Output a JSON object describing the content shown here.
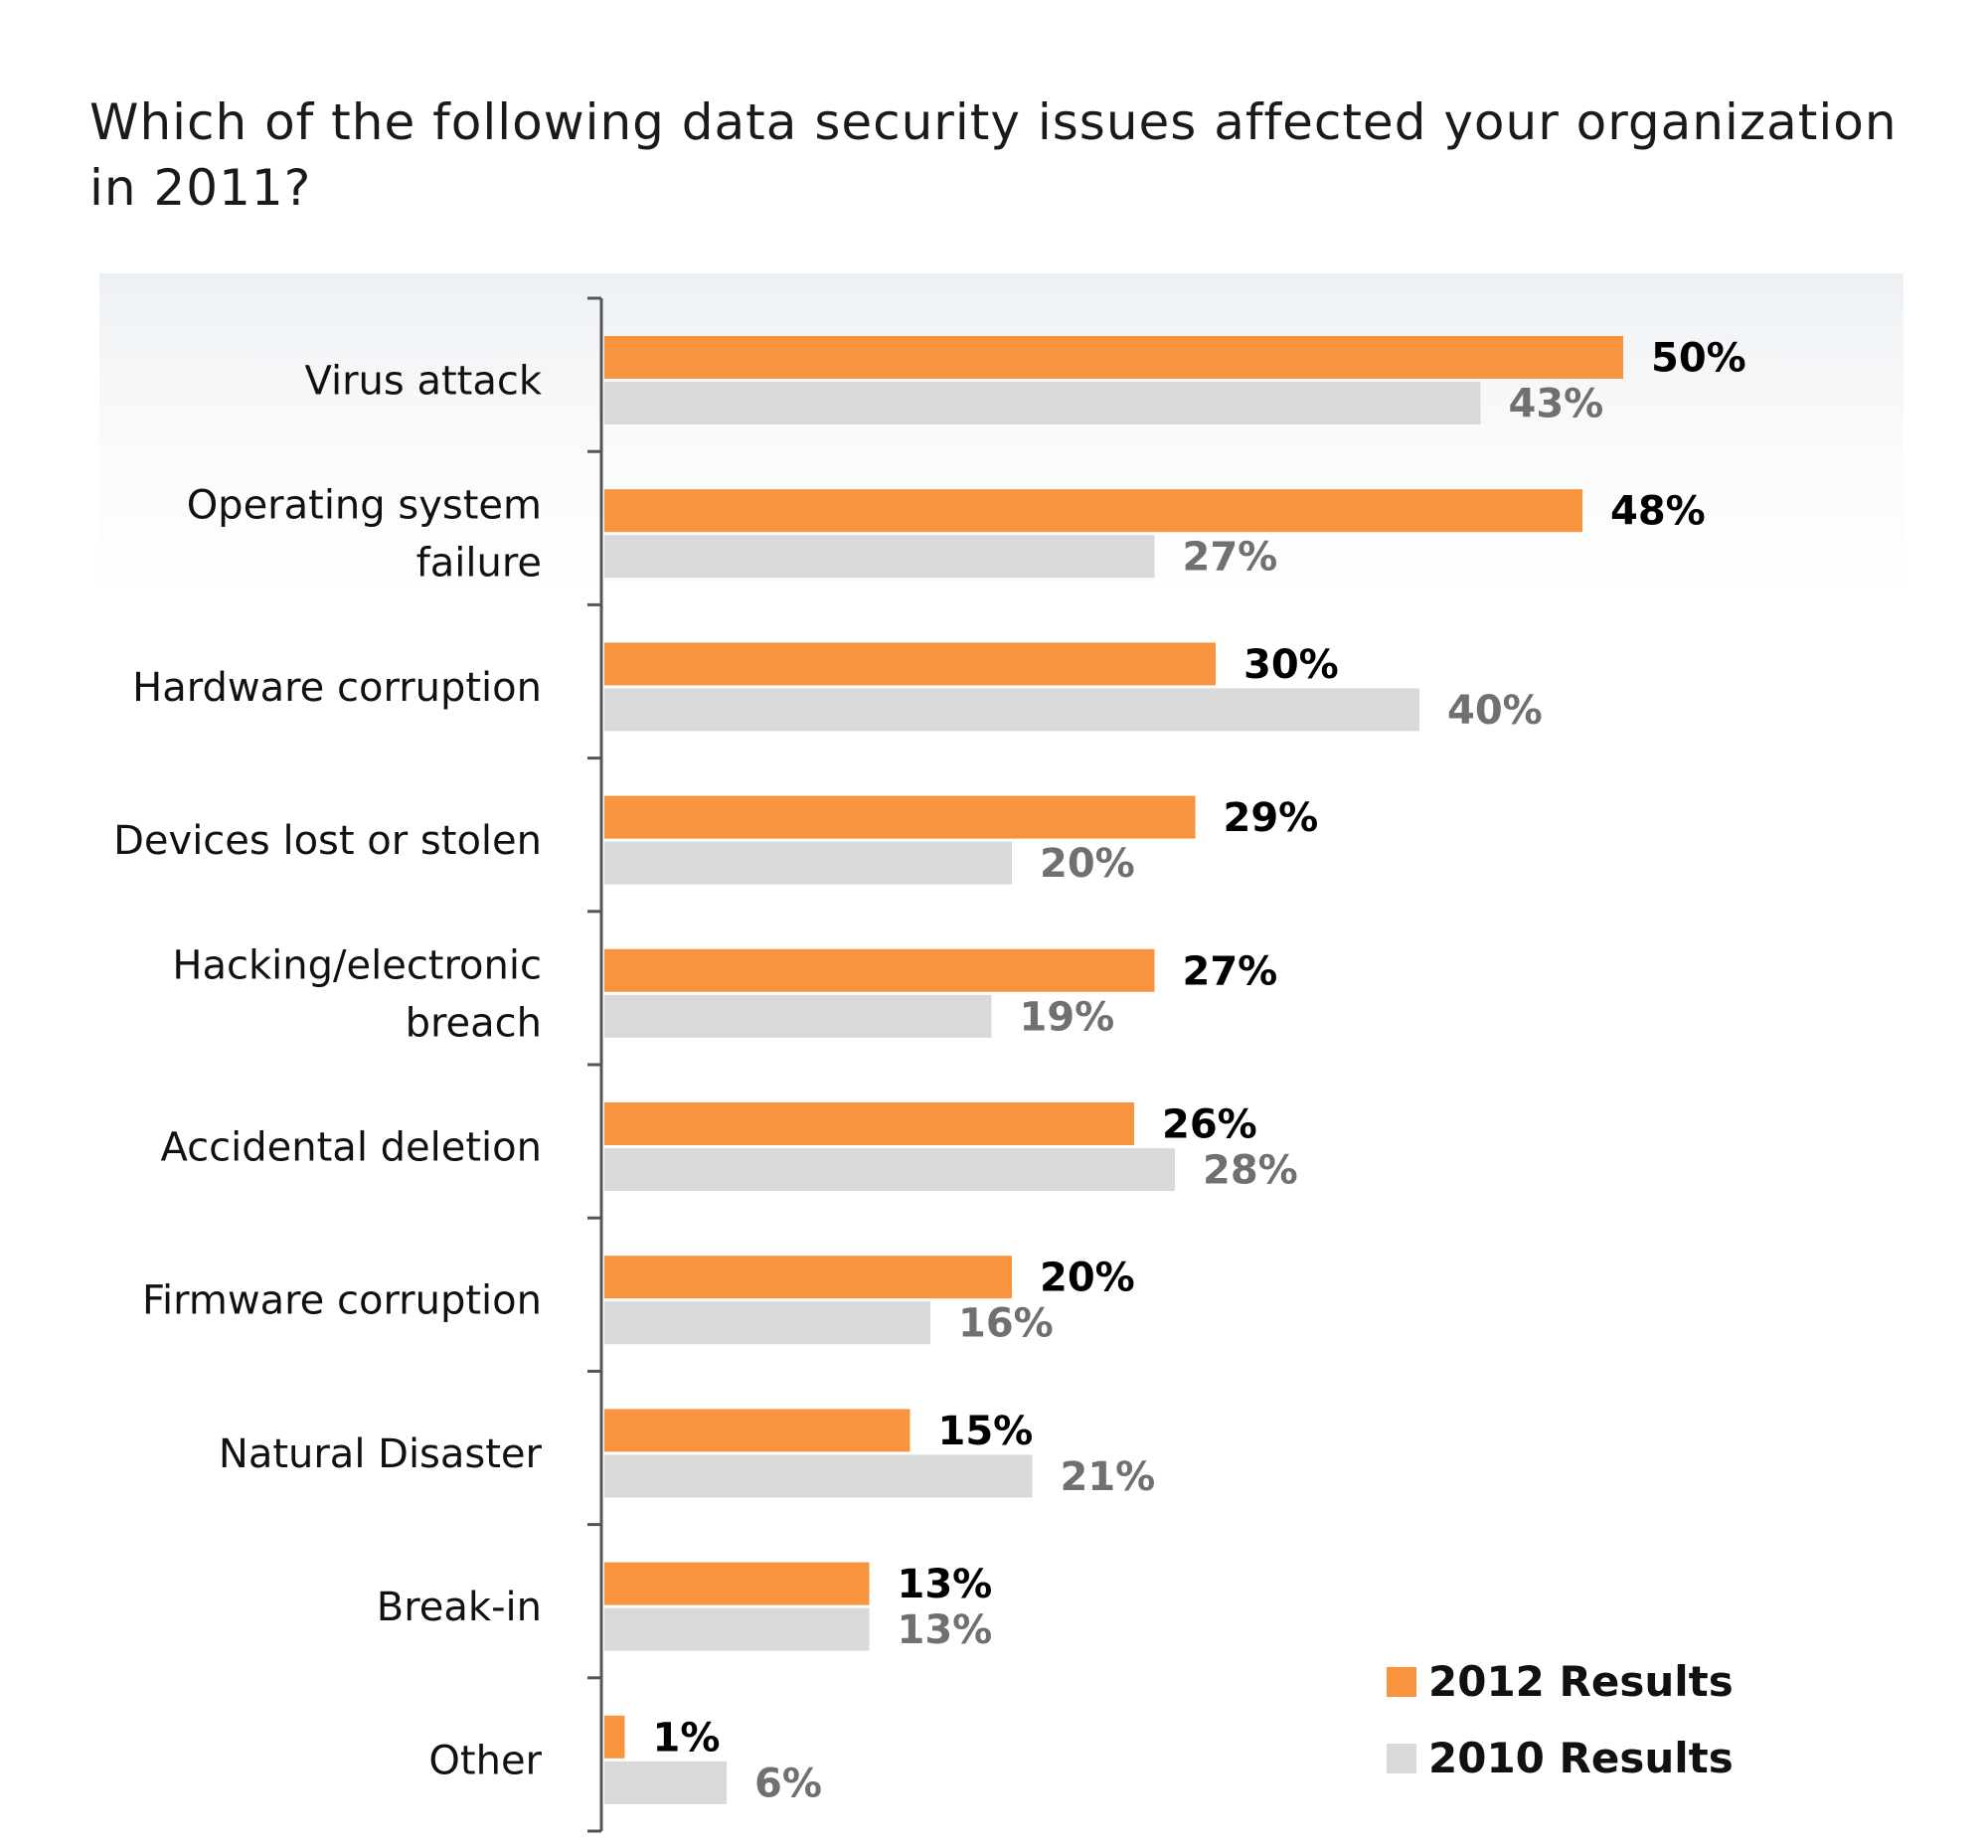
{
  "chart_data": {
    "type": "bar",
    "orientation": "horizontal",
    "title": "Which of the following data security issues affected your organization in 2011?",
    "categories": [
      [
        "Virus attack"
      ],
      [
        "Operating system",
        "failure"
      ],
      [
        "Hardware corruption"
      ],
      [
        "Devices lost or stolen"
      ],
      [
        "Hacking/electronic",
        "breach"
      ],
      [
        "Accidental deletion"
      ],
      [
        "Firmware corruption"
      ],
      [
        "Natural Disaster"
      ],
      [
        "Break-in"
      ],
      [
        "Other"
      ]
    ],
    "series": [
      {
        "name": "2012 Results",
        "color": "#f7943d",
        "values": [
          50,
          48,
          30,
          29,
          27,
          26,
          20,
          15,
          13,
          1
        ],
        "labels": [
          "50%",
          "48%",
          "30%",
          "29%",
          "27%",
          "26%",
          "20%",
          "15%",
          "13%",
          "1%"
        ]
      },
      {
        "name": "2010 Results",
        "color": "#d9d9d9",
        "values": [
          43,
          27,
          40,
          20,
          19,
          28,
          16,
          21,
          13,
          6
        ],
        "labels": [
          "43%",
          "27%",
          "40%",
          "20%",
          "19%",
          "28%",
          "16%",
          "21%",
          "13%",
          "6%"
        ]
      }
    ],
    "legend_position": "bottom-right",
    "value_unit": "%",
    "grid": false
  }
}
